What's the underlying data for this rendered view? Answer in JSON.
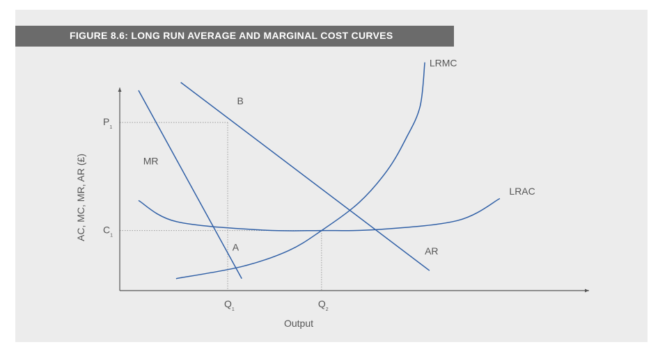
{
  "title": "FIGURE 8.6: LONG RUN AVERAGE AND MARGINAL COST CURVES",
  "colors": {
    "panel": "#ececec",
    "title_bar": "#6b6b6b",
    "curve": "#2f5fa6",
    "axis": "#555555",
    "guide": "#9a9a9a"
  },
  "chart_data": {
    "type": "line",
    "title": "FIGURE 8.6: LONG RUN AVERAGE AND MARGINAL COST CURVES",
    "xlabel": "Output",
    "ylabel": "AC, MC, MR, AR (£)",
    "xlim": [
      0,
      100
    ],
    "ylim": [
      0,
      100
    ],
    "grid": false,
    "x_ticks": [
      {
        "label": "Q",
        "sub": "1",
        "value": 23
      },
      {
        "label": "Q",
        "sub": "2",
        "value": 43
      }
    ],
    "y_ticks": [
      {
        "label": "P",
        "sub": "1",
        "value": 84
      },
      {
        "label": "C",
        "sub": "1",
        "value": 30
      }
    ],
    "series": [
      {
        "name": "AR",
        "label": "AR",
        "points": [
          [
            13,
            104
          ],
          [
            66,
            10
          ]
        ],
        "label_at": [
          65,
          18
        ]
      },
      {
        "name": "MR",
        "label": "MR",
        "points": [
          [
            4,
            100
          ],
          [
            26,
            6
          ]
        ],
        "label_at": [
          5,
          63
        ]
      },
      {
        "name": "LRAC",
        "label": "LRAC",
        "points": [
          [
            4,
            45
          ],
          [
            12,
            34.5
          ],
          [
            30,
            30.3
          ],
          [
            43,
            30
          ],
          [
            55,
            30.5
          ],
          [
            72,
            35
          ],
          [
            81,
            46
          ]
        ],
        "label_at": [
          83,
          48
        ]
      },
      {
        "name": "LRMC",
        "label": "LRMC",
        "points": [
          [
            12,
            6
          ],
          [
            26,
            12
          ],
          [
            36,
            20
          ],
          [
            43,
            30
          ],
          [
            51,
            44
          ],
          [
            57,
            60
          ],
          [
            61,
            76
          ],
          [
            64,
            92
          ],
          [
            65,
            114
          ]
        ],
        "label_at": [
          66,
          112
        ]
      }
    ],
    "annotations": [
      {
        "text": "A",
        "at": [
          24,
          20
        ]
      },
      {
        "text": "B",
        "at": [
          25,
          93
        ]
      }
    ],
    "guides": [
      {
        "from": [
          0,
          84
        ],
        "to": [
          23,
          84
        ]
      },
      {
        "from": [
          23,
          84
        ],
        "to": [
          23,
          0
        ]
      },
      {
        "from": [
          0,
          30
        ],
        "to": [
          43,
          30
        ]
      },
      {
        "from": [
          43,
          30
        ],
        "to": [
          43,
          0
        ]
      }
    ]
  }
}
